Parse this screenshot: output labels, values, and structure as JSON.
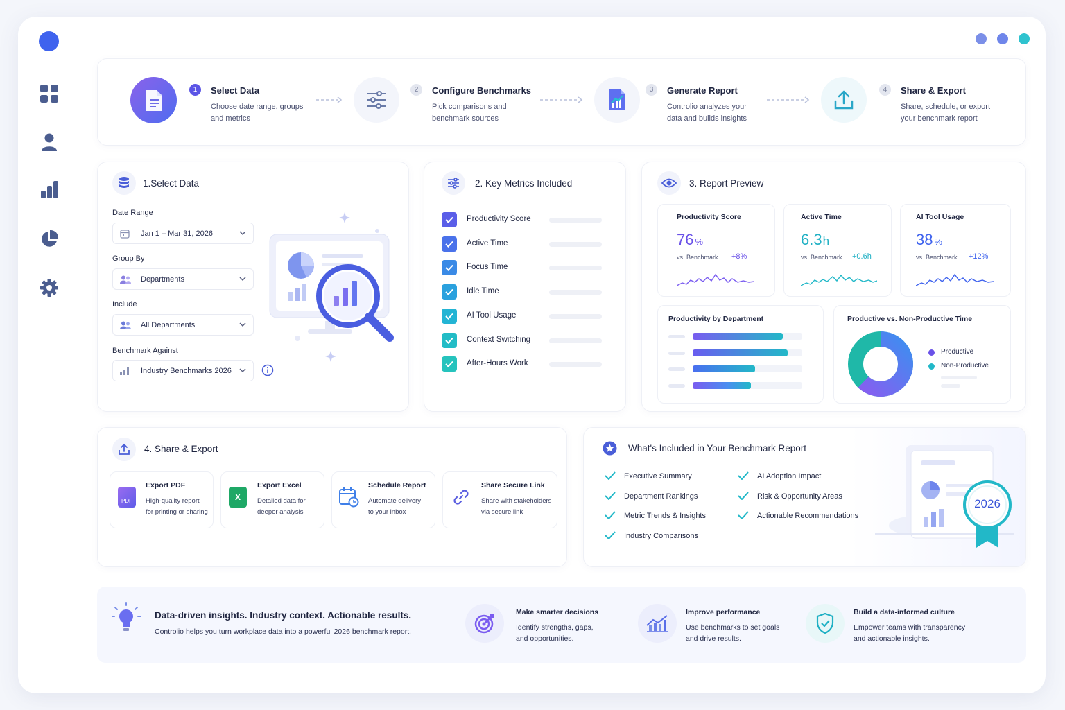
{
  "colors": {
    "primary": "#3f63ee",
    "purple": "#7a5cf0",
    "teal": "#22b8c8",
    "green": "#1faa84"
  },
  "steps": [
    {
      "num": "1",
      "title": "Select Data",
      "desc1": "Choose date range, groups",
      "desc2": "and metrics"
    },
    {
      "num": "2",
      "title": "Configure Benchmarks",
      "desc1": "Pick comparisons and",
      "desc2": "benchmark sources"
    },
    {
      "num": "3",
      "title": "Generate Report",
      "desc1": "Controlio analyzes your",
      "desc2": "data and builds insights"
    },
    {
      "num": "4",
      "title": "Share & Export",
      "desc1": "Share, schedule, or export",
      "desc2": "your benchmark report"
    }
  ],
  "select_data": {
    "title": "1.Select Data",
    "date_label": "Date Range",
    "date_value": "Jan 1 – Mar 31, 2026",
    "group_label": "Group By",
    "group_value": "Departments",
    "include_label": "Include",
    "include_value": "All Departments",
    "bench_label": "Benchmark Against",
    "bench_value": "Industry Benchmarks 2026"
  },
  "metrics": {
    "title": "2. Key Metrics Included",
    "items": [
      "Productivity Score",
      "Active Time",
      "Focus Time",
      "Idle Time",
      "AI Tool Usage",
      "Context Switching",
      "After-Hours Work"
    ]
  },
  "preview": {
    "title": "3. Report Preview",
    "kpis": [
      {
        "label": "Productivity Score",
        "value": "76",
        "unit": "%",
        "bench": "vs. Benchmark",
        "delta": "+8%"
      },
      {
        "label": "Active Time",
        "value": "6.3",
        "unit": "h",
        "bench": "vs. Benchmark",
        "delta": "+0.6h"
      },
      {
        "label": "AI Tool Usage",
        "value": "38",
        "unit": "%",
        "bench": "vs. Benchmark",
        "delta": "+12%"
      }
    ],
    "dept_title": "Productivity by Department",
    "dept_bars": [
      0.82,
      0.87,
      0.57,
      0.53
    ],
    "donut_title": "Productive vs. Non-Productive Time",
    "donut": {
      "productive": 0.62,
      "non_productive": 0.38
    },
    "legend": [
      "Productive",
      "Non-Productive"
    ]
  },
  "share": {
    "title": "4. Share & Export",
    "options": [
      {
        "title": "Export PDF",
        "d1": "High-quality report",
        "d2": "for printing or sharing",
        "icon": "pdf-icon",
        "badge": "PDF"
      },
      {
        "title": "Export Excel",
        "d1": "Detailed data for",
        "d2": "deeper analysis",
        "icon": "excel-icon",
        "badge": "X"
      },
      {
        "title": "Schedule Report",
        "d1": "Automate delivery",
        "d2": "to your inbox",
        "icon": "calendar-clock-icon"
      },
      {
        "title": "Share Secure Link",
        "d1": "Share with stakeholders",
        "d2": "via secure link",
        "icon": "link-icon"
      }
    ]
  },
  "included": {
    "title": "What's Included in Your Benchmark Report",
    "left": [
      "Executive Summary",
      "Department Rankings",
      "Metric Trends & Insights",
      "Industry Comparisons"
    ],
    "right": [
      "AI Adoption Impact",
      "Risk & Opportunity Areas",
      "Actionable Recommendations"
    ],
    "badge_year": "2026"
  },
  "footer": {
    "headline": "Data-driven insights. Industry context. Actionable results.",
    "subline": "Controlio helps you turn workplace data into a powerful 2026 benchmark report.",
    "features": [
      {
        "title": "Make smarter decisions",
        "d1": "Identify strengths, gaps,",
        "d2": "and opportunities."
      },
      {
        "title": "Improve performance",
        "d1": "Use benchmarks to set goals",
        "d2": "and drive results."
      },
      {
        "title": "Build a data-informed culture",
        "d1": "Empower teams with transparency",
        "d2": "and actionable insights."
      }
    ]
  }
}
